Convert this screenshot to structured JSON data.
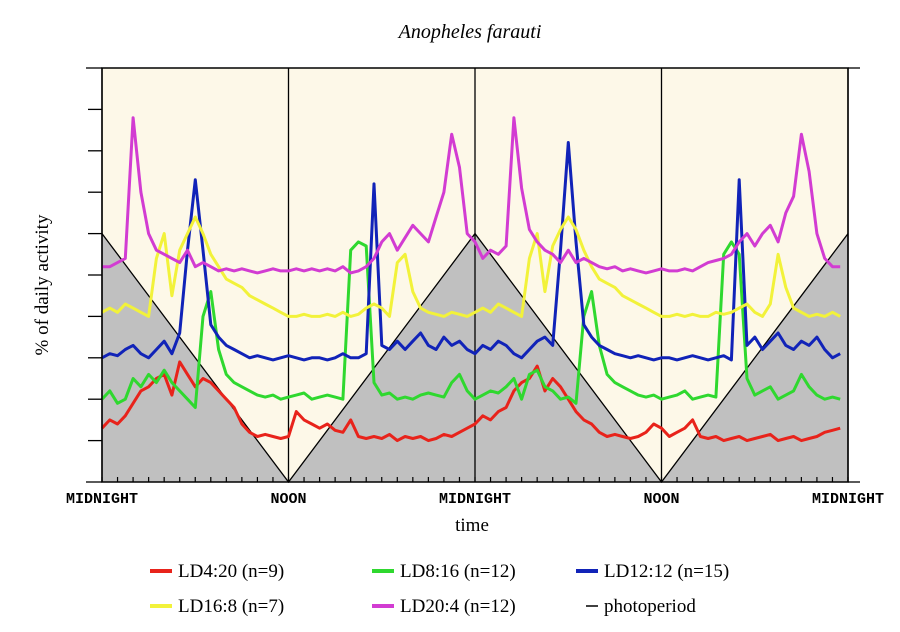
{
  "chart_data": {
    "type": "line",
    "title": "Anopheles farauti",
    "xlabel": "time",
    "ylabel": "% of daily activity",
    "x_range_hours": [
      0,
      48
    ],
    "x_tick_hours": [
      0,
      12,
      24,
      36,
      48
    ],
    "x_tick_labels": [
      "MIDNIGHT",
      "NOON",
      "MIDNIGHT",
      "NOON",
      "MIDNIGHT"
    ],
    "y_range": [
      0,
      10
    ],
    "y_ticks": [
      1,
      2,
      3,
      4,
      5,
      6,
      7,
      8,
      9
    ],
    "grid": false,
    "legend_position": "bottom",
    "colors": {
      "background": "#fdf8e8",
      "shade": "#c0c0c0",
      "LD4:20 (n=9)": "#e8231b",
      "LD8:16 (n=12)": "#2fd82f",
      "LD12:12 (n=15)": "#1123b8",
      "LD16:8 (n=7)": "#f2f23a",
      "LD20:4 (n=12)": "#d23cd2",
      "photoperiod": "#000000"
    },
    "photoperiod_line": {
      "x": [
        0,
        12,
        24,
        36,
        48
      ],
      "y": [
        6,
        0,
        6,
        0,
        6
      ]
    },
    "series": [
      {
        "name": "LD4:20 (n=9)",
        "x": [
          0,
          0.5,
          1,
          1.5,
          2,
          2.5,
          3,
          3.5,
          4,
          4.5,
          5,
          5.5,
          6,
          6.5,
          7,
          7.5,
          8,
          8.5,
          9,
          9.5,
          10,
          10.5,
          11,
          11.5,
          12,
          12.5,
          13,
          13.5,
          14,
          14.5,
          15,
          15.5,
          16,
          16.5,
          17,
          17.5,
          18,
          18.5,
          19,
          19.5,
          20,
          20.5,
          21,
          21.5,
          22,
          22.5,
          23,
          23.5,
          24,
          24.5,
          25,
          25.5,
          26,
          26.5,
          27,
          27.5,
          28,
          28.5,
          29,
          29.5,
          30,
          30.5,
          31,
          31.5,
          32,
          32.5,
          33,
          33.5,
          34,
          34.5,
          35,
          35.5,
          36,
          36.5,
          37,
          37.5,
          38,
          38.5,
          39,
          39.5,
          40,
          40.5,
          41,
          41.5,
          42,
          42.5,
          43,
          43.5,
          44,
          44.5,
          45,
          45.5,
          46,
          46.5,
          47,
          47.5
        ],
        "y": [
          1.3,
          1.5,
          1.4,
          1.6,
          1.9,
          2.2,
          2.3,
          2.5,
          2.6,
          2.1,
          2.9,
          2.6,
          2.3,
          2.5,
          2.4,
          2.2,
          2.0,
          1.8,
          1.4,
          1.2,
          1.1,
          1.15,
          1.1,
          1.05,
          1.1,
          1.7,
          1.5,
          1.4,
          1.3,
          1.4,
          1.25,
          1.2,
          1.5,
          1.1,
          1.05,
          1.1,
          1.05,
          1.15,
          1.0,
          1.1,
          1.05,
          1.1,
          1.0,
          1.05,
          1.15,
          1.1,
          1.2,
          1.3,
          1.4,
          1.6,
          1.5,
          1.7,
          1.8,
          2.2,
          2.4,
          2.5,
          2.8,
          2.2,
          2.5,
          2.3,
          2.0,
          1.7,
          1.5,
          1.4,
          1.2,
          1.1,
          1.15,
          1.1,
          1.05,
          1.1,
          1.2,
          1.4,
          1.3,
          1.1,
          1.2,
          1.3,
          1.5,
          1.1,
          1.05,
          1.1,
          1.0,
          1.05,
          1.1,
          1.0,
          1.05,
          1.1,
          1.15,
          1.0,
          1.05,
          1.1,
          1.0,
          1.05,
          1.1,
          1.2,
          1.25,
          1.3
        ]
      },
      {
        "name": "LD8:16 (n=12)",
        "x": [
          0,
          0.5,
          1,
          1.5,
          2,
          2.5,
          3,
          3.5,
          4,
          4.5,
          5,
          5.5,
          6,
          6.5,
          7,
          7.5,
          8,
          8.5,
          9,
          9.5,
          10,
          10.5,
          11,
          11.5,
          12,
          12.5,
          13,
          13.5,
          14,
          14.5,
          15,
          15.5,
          16,
          16.5,
          17,
          17.5,
          18,
          18.5,
          19,
          19.5,
          20,
          20.5,
          21,
          21.5,
          22,
          22.5,
          23,
          23.5,
          24,
          24.5,
          25,
          25.5,
          26,
          26.5,
          27,
          27.5,
          28,
          28.5,
          29,
          29.5,
          30,
          30.5,
          31,
          31.5,
          32,
          32.5,
          33,
          33.5,
          34,
          34.5,
          35,
          35.5,
          36,
          36.5,
          37,
          37.5,
          38,
          38.5,
          39,
          39.5,
          40,
          40.5,
          41,
          41.5,
          42,
          42.5,
          43,
          43.5,
          44,
          44.5,
          45,
          45.5,
          46,
          46.5,
          47,
          47.5
        ],
        "y": [
          2.0,
          2.2,
          1.9,
          2.0,
          2.5,
          2.3,
          2.6,
          2.4,
          2.7,
          2.4,
          2.2,
          2.0,
          1.8,
          4.0,
          4.6,
          3.2,
          2.6,
          2.4,
          2.3,
          2.2,
          2.1,
          2.05,
          2.1,
          2.0,
          2.05,
          2.1,
          2.15,
          2.0,
          2.05,
          2.1,
          2.05,
          2.0,
          5.6,
          5.8,
          5.7,
          2.4,
          2.1,
          2.15,
          2.0,
          2.05,
          2.0,
          2.1,
          2.15,
          2.1,
          2.05,
          2.4,
          2.6,
          2.2,
          2.0,
          2.1,
          2.2,
          2.15,
          2.3,
          2.5,
          2.0,
          2.6,
          2.7,
          2.3,
          2.2,
          2.0,
          2.05,
          1.9,
          4.0,
          4.6,
          3.3,
          2.6,
          2.4,
          2.3,
          2.2,
          2.1,
          2.05,
          2.1,
          2.0,
          2.05,
          2.1,
          2.2,
          2.0,
          2.05,
          2.1,
          2.05,
          5.5,
          5.8,
          5.5,
          2.5,
          2.1,
          2.2,
          2.3,
          2.0,
          2.1,
          2.2,
          2.6,
          2.3,
          2.1,
          2.0,
          2.05,
          2.0
        ]
      },
      {
        "name": "LD12:12 (n=15)",
        "x": [
          0,
          0.5,
          1,
          1.5,
          2,
          2.5,
          3,
          3.5,
          4,
          4.5,
          5,
          5.5,
          6,
          6.5,
          7,
          7.5,
          8,
          8.5,
          9,
          9.5,
          10,
          10.5,
          11,
          11.5,
          12,
          12.5,
          13,
          13.5,
          14,
          14.5,
          15,
          15.5,
          16,
          16.5,
          17,
          17.5,
          18,
          18.5,
          19,
          19.5,
          20,
          20.5,
          21,
          21.5,
          22,
          22.5,
          23,
          23.5,
          24,
          24.5,
          25,
          25.5,
          26,
          26.5,
          27,
          27.5,
          28,
          28.5,
          29,
          29.5,
          30,
          30.5,
          31,
          31.5,
          32,
          32.5,
          33,
          33.5,
          34,
          34.5,
          35,
          35.5,
          36,
          36.5,
          37,
          37.5,
          38,
          38.5,
          39,
          39.5,
          40,
          40.5,
          41,
          41.5,
          42,
          42.5,
          43,
          43.5,
          44,
          44.5,
          45,
          45.5,
          46,
          46.5,
          47,
          47.5
        ],
        "y": [
          3.0,
          3.1,
          3.05,
          3.2,
          3.3,
          3.1,
          3.0,
          3.2,
          3.4,
          3.1,
          3.6,
          5.6,
          7.3,
          5.6,
          3.8,
          3.5,
          3.3,
          3.2,
          3.1,
          3.0,
          3.05,
          3.0,
          2.95,
          3.0,
          3.05,
          3.0,
          2.95,
          3.0,
          3.0,
          2.95,
          3.0,
          3.1,
          3.0,
          3.0,
          3.1,
          7.2,
          3.3,
          3.2,
          3.4,
          3.2,
          3.4,
          3.6,
          3.3,
          3.2,
          3.5,
          3.3,
          3.4,
          3.2,
          3.1,
          3.3,
          3.2,
          3.4,
          3.3,
          3.1,
          3.0,
          3.2,
          3.4,
          3.5,
          3.3,
          5.6,
          8.2,
          5.8,
          3.8,
          3.5,
          3.3,
          3.2,
          3.1,
          3.05,
          3.0,
          3.05,
          3.0,
          2.95,
          3.0,
          3.0,
          2.95,
          3.0,
          3.05,
          3.0,
          2.95,
          3.0,
          3.05,
          2.95,
          7.3,
          3.3,
          3.5,
          3.2,
          3.4,
          3.6,
          3.3,
          3.2,
          3.4,
          3.3,
          3.5,
          3.2,
          3.0,
          3.1
        ]
      },
      {
        "name": "LD16:8 (n=7)",
        "x": [
          0,
          0.5,
          1,
          1.5,
          2,
          2.5,
          3,
          3.5,
          4,
          4.5,
          5,
          5.5,
          6,
          6.5,
          7,
          7.5,
          8,
          8.5,
          9,
          9.5,
          10,
          10.5,
          11,
          11.5,
          12,
          12.5,
          13,
          13.5,
          14,
          14.5,
          15,
          15.5,
          16,
          16.5,
          17,
          17.5,
          18,
          18.5,
          19,
          19.5,
          20,
          20.5,
          21,
          21.5,
          22,
          22.5,
          23,
          23.5,
          24,
          24.5,
          25,
          25.5,
          26,
          26.5,
          27,
          27.5,
          28,
          28.5,
          29,
          29.5,
          30,
          30.5,
          31,
          31.5,
          32,
          32.5,
          33,
          33.5,
          34,
          34.5,
          35,
          35.5,
          36,
          36.5,
          37,
          37.5,
          38,
          38.5,
          39,
          39.5,
          40,
          40.5,
          41,
          41.5,
          42,
          42.5,
          43,
          43.5,
          44,
          44.5,
          45,
          45.5,
          46,
          46.5,
          47,
          47.5
        ],
        "y": [
          4.1,
          4.2,
          4.1,
          4.3,
          4.2,
          4.1,
          4.0,
          5.4,
          6.0,
          4.5,
          5.6,
          6.0,
          6.4,
          6.0,
          5.5,
          5.2,
          4.9,
          4.8,
          4.7,
          4.5,
          4.4,
          4.3,
          4.2,
          4.1,
          4.0,
          4.0,
          4.05,
          4.0,
          4.0,
          4.05,
          4.0,
          4.1,
          4.0,
          4.05,
          4.2,
          4.3,
          4.2,
          4.0,
          5.3,
          5.5,
          4.6,
          4.2,
          4.1,
          4.05,
          4.0,
          4.1,
          4.05,
          4.0,
          4.1,
          4.2,
          4.1,
          4.3,
          4.2,
          4.1,
          4.0,
          5.4,
          6.0,
          4.6,
          5.7,
          6.1,
          6.4,
          6.1,
          5.6,
          5.2,
          4.9,
          4.8,
          4.7,
          4.5,
          4.4,
          4.3,
          4.2,
          4.1,
          4.0,
          4.0,
          4.05,
          4.0,
          4.05,
          4.0,
          4.0,
          4.1,
          4.05,
          4.1,
          4.2,
          4.3,
          4.1,
          4.0,
          4.3,
          5.5,
          4.7,
          4.2,
          4.1,
          4.0,
          4.05,
          4.0,
          4.1,
          4.0
        ]
      },
      {
        "name": "LD20:4 (n=12)",
        "x": [
          0,
          0.5,
          1,
          1.5,
          2,
          2.5,
          3,
          3.5,
          4,
          4.5,
          5,
          5.5,
          6,
          6.5,
          7,
          7.5,
          8,
          8.5,
          9,
          9.5,
          10,
          10.5,
          11,
          11.5,
          12,
          12.5,
          13,
          13.5,
          14,
          14.5,
          15,
          15.5,
          16,
          16.5,
          17,
          17.5,
          18,
          18.5,
          19,
          19.5,
          20,
          20.5,
          21,
          21.5,
          22,
          22.5,
          23,
          23.5,
          24,
          24.5,
          25,
          25.5,
          26,
          26.5,
          27,
          27.5,
          28,
          28.5,
          29,
          29.5,
          30,
          30.5,
          31,
          31.5,
          32,
          32.5,
          33,
          33.5,
          34,
          34.5,
          35,
          35.5,
          36,
          36.5,
          37,
          37.5,
          38,
          38.5,
          39,
          39.5,
          40,
          40.5,
          41,
          41.5,
          42,
          42.5,
          43,
          43.5,
          44,
          44.5,
          45,
          45.5,
          46,
          46.5,
          47,
          47.5
        ],
        "y": [
          5.2,
          5.2,
          5.3,
          5.4,
          8.8,
          7.0,
          6.0,
          5.6,
          5.5,
          5.4,
          5.3,
          5.6,
          5.2,
          5.3,
          5.2,
          5.1,
          5.15,
          5.1,
          5.15,
          5.1,
          5.05,
          5.1,
          5.15,
          5.1,
          5.1,
          5.15,
          5.1,
          5.15,
          5.1,
          5.15,
          5.1,
          5.2,
          5.05,
          5.1,
          5.2,
          5.4,
          5.8,
          6.0,
          5.6,
          5.9,
          6.2,
          6.0,
          5.8,
          6.4,
          7.0,
          8.4,
          7.6,
          6.0,
          5.8,
          5.4,
          5.6,
          5.5,
          5.7,
          8.8,
          7.1,
          6.1,
          5.8,
          5.6,
          5.5,
          5.3,
          5.6,
          5.3,
          5.4,
          5.3,
          5.2,
          5.15,
          5.2,
          5.1,
          5.15,
          5.1,
          5.05,
          5.1,
          5.15,
          5.1,
          5.1,
          5.15,
          5.1,
          5.2,
          5.3,
          5.35,
          5.4,
          5.5,
          5.8,
          6.0,
          5.7,
          6.0,
          6.2,
          5.8,
          6.5,
          6.9,
          8.4,
          7.5,
          6.0,
          5.4,
          5.2,
          5.2
        ]
      }
    ]
  },
  "legend": {
    "items": [
      {
        "label": "LD4:20 (n=9)",
        "color": "#e8231b"
      },
      {
        "label": "LD8:16 (n=12)",
        "color": "#2fd82f"
      },
      {
        "label": "LD12:12 (n=15)",
        "color": "#1123b8"
      },
      {
        "label": "LD16:8 (n=7)",
        "color": "#f2f23a"
      },
      {
        "label": "LD20:4 (n=12)",
        "color": "#d23cd2"
      },
      {
        "label": "photoperiod",
        "color": "#000000"
      }
    ]
  }
}
